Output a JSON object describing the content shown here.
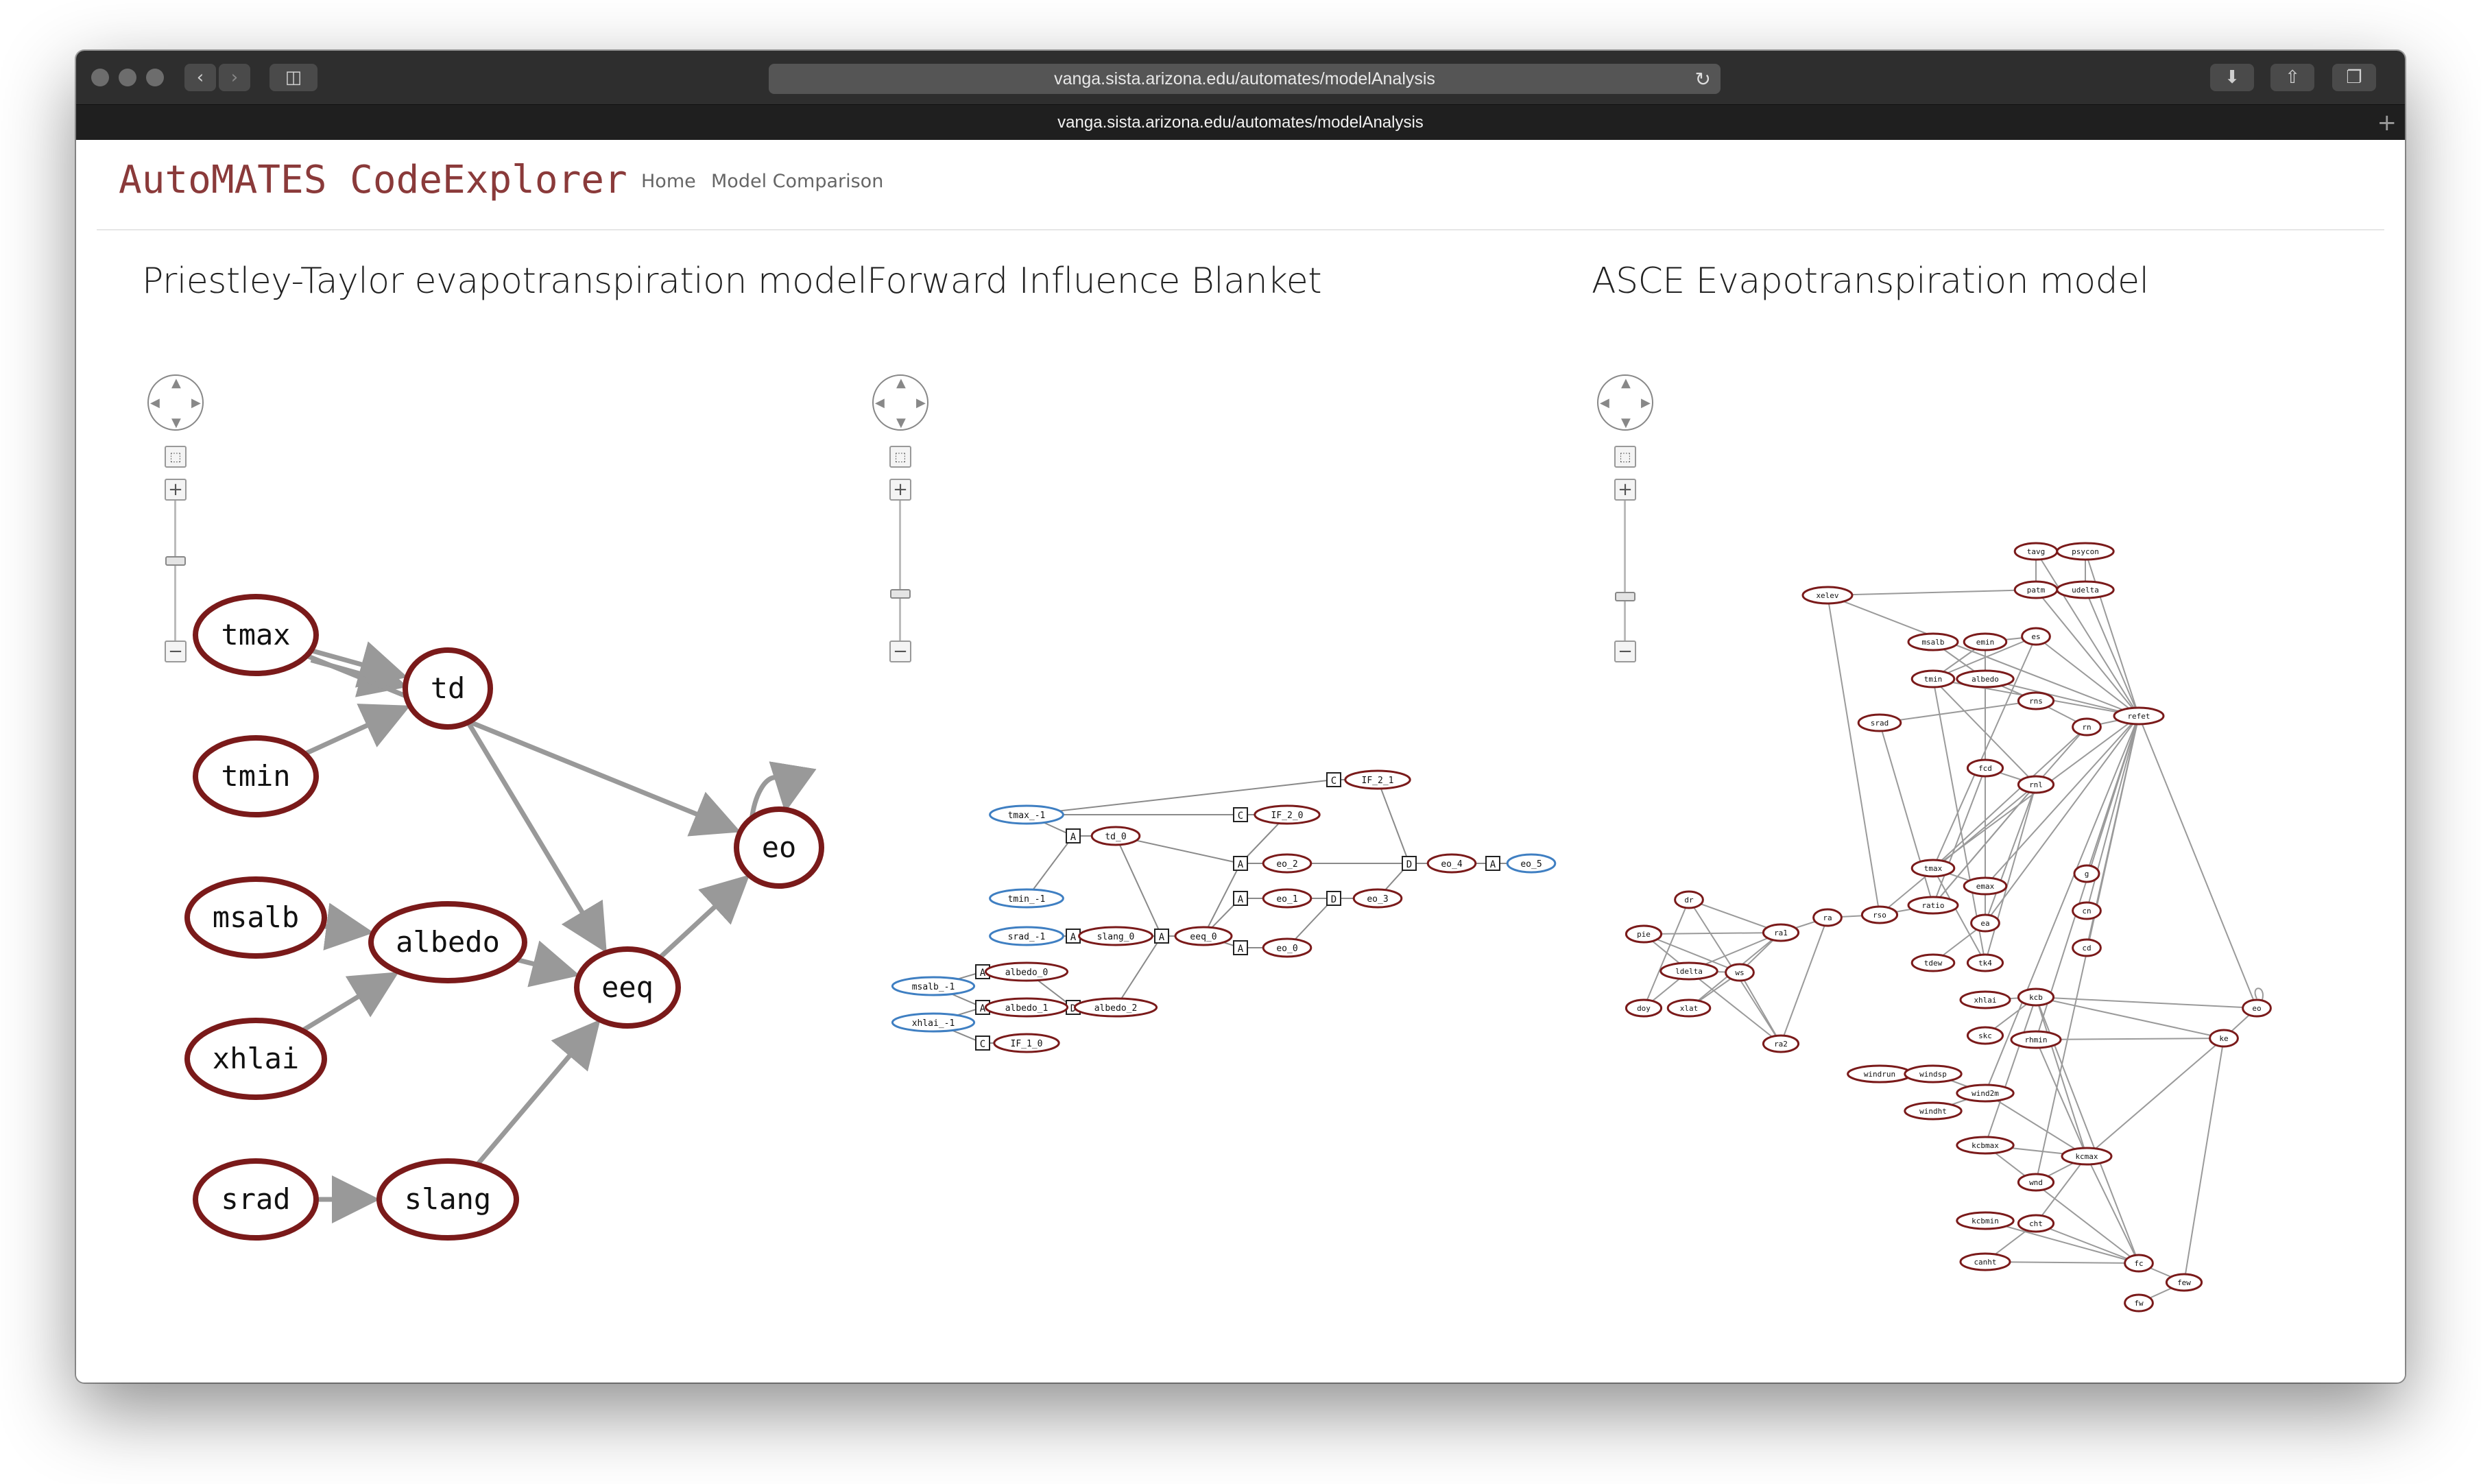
{
  "browser": {
    "url": "vanga.sista.arizona.edu/automates/modelAnalysis",
    "tab_title": "vanga.sista.arizona.edu/automates/modelAnalysis"
  },
  "header": {
    "brand": "AutoMATES CodeExplorer",
    "nav": [
      "Home",
      "Model Comparison"
    ]
  },
  "panels": [
    {
      "title": "Priestley-Taylor evapotranspiration model"
    },
    {
      "title": "Forward Influence Blanket"
    },
    {
      "title": "ASCE Evapotranspiration model"
    }
  ],
  "colors": {
    "node_border": "#7a1a1a",
    "input_node_border": "#3f7fc2",
    "edge": "#999999",
    "brand": "#8a3a3a"
  },
  "graph1": {
    "nodes": [
      "tmax",
      "tmin",
      "td",
      "msalb",
      "albedo",
      "xhlai",
      "eeq",
      "eo",
      "srad",
      "slang"
    ],
    "edges": [
      [
        "tmax",
        "td"
      ],
      [
        "tmax",
        "td"
      ],
      [
        "tmin",
        "td"
      ],
      [
        "tmax",
        "eo"
      ],
      [
        "td",
        "eeq"
      ],
      [
        "msalb",
        "albedo"
      ],
      [
        "xhlai",
        "albedo"
      ],
      [
        "albedo",
        "eeq"
      ],
      [
        "eeq",
        "eo"
      ],
      [
        "srad",
        "slang"
      ],
      [
        "slang",
        "eeq"
      ],
      [
        "eo",
        "eo"
      ]
    ]
  },
  "graph2": {
    "nodes": [
      "tmax_-1",
      "tmin_-1",
      "srad_-1",
      "msalb_-1",
      "xhlai_-1",
      "td_0",
      "slang_0",
      "eeq_0",
      "albedo_0",
      "albedo_1",
      "albedo_2",
      "IF_1_0",
      "IF_2_0",
      "IF_2_1",
      "eo_2",
      "eo_1",
      "eo_0",
      "eo_3",
      "eo_4",
      "eo_5"
    ],
    "input_nodes": [
      "tmax_-1",
      "tmin_-1",
      "srad_-1",
      "msalb_-1",
      "xhlai_-1",
      "eo_5"
    ],
    "box_labels": [
      "A",
      "C",
      "D"
    ]
  },
  "graph3": {
    "nodes": [
      "tavg",
      "psycon",
      "patm",
      "udelta",
      "xelev",
      "msalb",
      "emin",
      "es",
      "tmin",
      "albedo",
      "rns",
      "refet",
      "srad",
      "rn",
      "fcd",
      "rnl",
      "g",
      "cn",
      "cd",
      "tmax",
      "emax",
      "ratio",
      "rso",
      "ra",
      "dr",
      "ra1",
      "pie",
      "ldelta",
      "ws",
      "doy",
      "xlat",
      "ra2",
      "ea",
      "tdew",
      "tk4",
      "xhlai",
      "kcb",
      "eo",
      "skc",
      "rhmin",
      "ke",
      "windrun",
      "windsp",
      "wind2m",
      "windht",
      "kcbmax",
      "wnd",
      "kcmax",
      "kcbmin",
      "cht",
      "canht",
      "fc",
      "few",
      "fw"
    ]
  }
}
